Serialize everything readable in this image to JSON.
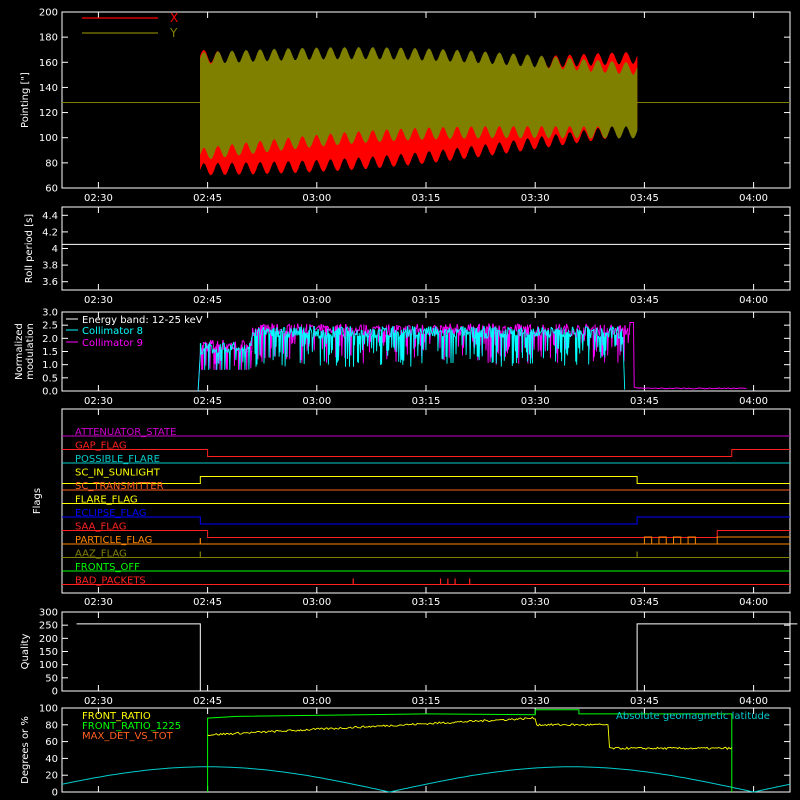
{
  "chart_data": [
    {
      "type": "line",
      "ylabel": "Pointing [\"]",
      "ylim": [
        60,
        200
      ],
      "yticks": [
        60,
        80,
        100,
        120,
        140,
        160,
        180,
        200
      ],
      "time_ticks": [
        "02:30",
        "02:45",
        "03:00",
        "03:15",
        "03:30",
        "03:45",
        "04:00"
      ],
      "xlim_minutes": [
        145,
        245
      ],
      "legend": "top-left",
      "series": [
        {
          "name": "X",
          "color": "#ff0000",
          "start": "02:44",
          "end": "03:44",
          "mean_start": 120,
          "mean_end": 132,
          "amplitude_start": 45,
          "amplitude_end": 28
        },
        {
          "name": "Y",
          "color": "#808000",
          "start": "02:44",
          "end": "03:44",
          "mean_start": 125,
          "mean_end": 133,
          "amplitude_start": 38,
          "amplitude_end": 25,
          "baseline": 128
        }
      ]
    },
    {
      "type": "line",
      "ylabel": "Roll period [s]",
      "ylim": [
        3.5,
        4.5
      ],
      "yticks": [
        3.6,
        3.8,
        4.0,
        4.2,
        4.4
      ],
      "time_ticks": [
        "02:30",
        "02:45",
        "03:00",
        "03:15",
        "03:30",
        "03:45",
        "04:00"
      ],
      "series": [
        {
          "value": 4.05,
          "color": "#ffffff"
        }
      ]
    },
    {
      "type": "line",
      "ylabel_lines": [
        "Normalized",
        "modulation"
      ],
      "ylim": [
        0.0,
        3.0
      ],
      "yticks": [
        "0.0",
        "0.5",
        "1.0",
        "1.5",
        "2.0",
        "2.5",
        "3.0"
      ],
      "time_ticks": [
        "02:30",
        "02:45",
        "03:00",
        "03:15",
        "03:30",
        "03:45",
        "04:00"
      ],
      "legend_title": "Energy band: 12-25 keV",
      "series": [
        {
          "name": "Collimator 8",
          "color": "#00ffff",
          "start": "02:44",
          "end": "03:42",
          "level": 2.0
        },
        {
          "name": "Collimator 9",
          "color": "#ff00ff",
          "start": "02:44",
          "end": "03:43",
          "level": 2.1,
          "tail_level": 0.1,
          "tail_end": "03:59"
        }
      ]
    },
    {
      "type": "table",
      "ylabel": "Flags",
      "time_ticks": [
        "02:30",
        "02:45",
        "03:00",
        "03:15",
        "03:30",
        "03:45",
        "04:00"
      ],
      "flags": [
        {
          "name": "ATTENUATOR_STATE",
          "color": "#cc00cc",
          "transitions": []
        },
        {
          "name": "GAP_FLAG",
          "color": "#ff2020",
          "transitions": [
            [
              "02:45",
              "low"
            ],
            [
              "03:57",
              "high"
            ]
          ]
        },
        {
          "name": "POSSIBLE_FLARE",
          "color": "#00cccc",
          "transitions": []
        },
        {
          "name": "SC_IN_SUNLIGHT",
          "color": "#ffff00",
          "transitions": [
            [
              "02:44",
              "high"
            ],
            [
              "03:44",
              "low"
            ]
          ]
        },
        {
          "name": "SC_TRANSMITTER",
          "color": "#ff6020",
          "transitions": []
        },
        {
          "name": "FLARE_FLAG",
          "color": "#ffff00",
          "transitions": []
        },
        {
          "name": "ECLIPSE_FLAG",
          "color": "#0000ff",
          "transitions": [
            [
              "02:44",
              "low"
            ],
            [
              "03:44",
              "high"
            ]
          ]
        },
        {
          "name": "SAA_FLAG",
          "color": "#ff2020",
          "transitions": [
            [
              "02:45",
              "low"
            ],
            [
              "03:55",
              "high"
            ]
          ]
        },
        {
          "name": "PARTICLE_FLAG",
          "color": "#ff8800",
          "transitions": []
        },
        {
          "name": "AAZ_FLAG",
          "color": "#808000",
          "transitions": []
        },
        {
          "name": "FRONTS_OFF",
          "color": "#00ff00",
          "transitions": []
        },
        {
          "name": "BAD_PACKETS",
          "color": "#ff2020",
          "transitions": []
        }
      ]
    },
    {
      "type": "line",
      "ylabel": "Quality",
      "ylim": [
        0,
        300
      ],
      "yticks": [
        0,
        50,
        100,
        150,
        200,
        250,
        300
      ],
      "time_ticks": [
        "02:30",
        "02:45",
        "03:00",
        "03:15",
        "03:30",
        "03:45",
        "04:00"
      ],
      "series": [
        {
          "color": "#ffffff",
          "segments": [
            [
              "02:27",
              "02:44",
              255
            ],
            [
              "02:44",
              "03:44",
              0
            ],
            [
              "03:44",
              "04:06",
              255
            ]
          ]
        }
      ]
    },
    {
      "type": "line",
      "ylabel": "Degrees or %",
      "ylim": [
        0,
        100
      ],
      "yticks": [
        0,
        20,
        40,
        60,
        80,
        100
      ],
      "time_ticks": [
        "02:30",
        "02:45",
        "03:00",
        "03:15",
        "03:30",
        "03:45",
        "04:00"
      ],
      "series": [
        {
          "name": "FRONT_RATIO",
          "color": "#ffff00"
        },
        {
          "name": "FRONT_RATIO_1225",
          "color": "#00ff00"
        },
        {
          "name": "MAX_DET_VS_TOT",
          "color": "#ff6020"
        },
        {
          "name": "Absolute geomagnetic latitude",
          "color": "#00cccc",
          "peak": 30
        }
      ]
    }
  ]
}
